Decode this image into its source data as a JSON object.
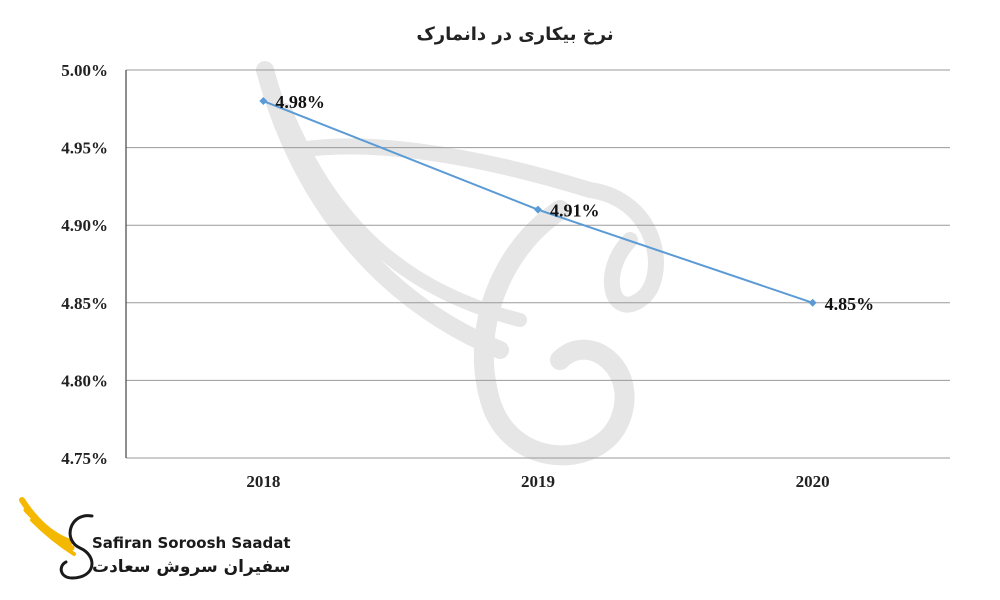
{
  "chart_data": {
    "type": "line",
    "title": "نرخ بیکاری در دانمارک",
    "categories": [
      "2018",
      "2019",
      "2020"
    ],
    "series": [
      {
        "values": [
          4.98,
          4.91,
          4.85
        ],
        "labels": [
          "4.98%",
          "4.91%",
          "4.85%"
        ]
      }
    ],
    "ylim": [
      4.75,
      5.0
    ],
    "yticks": [
      5.0,
      4.95,
      4.9,
      4.85,
      4.8,
      4.75
    ],
    "ytick_labels": [
      "5.00%",
      "4.95%",
      "4.90%",
      "4.85%",
      "4.80%",
      "4.75%"
    ],
    "grid": true,
    "legend": "none",
    "line_color": "#5b9bd5"
  },
  "logo": {
    "name_en": "Safiran Soroosh Saadat",
    "name_fa": "سفیران سروش سعادت",
    "wing_color": "#f5b800",
    "accent_color": "#1a1a1a"
  },
  "watermark": {
    "color": "#e6e6e6"
  }
}
